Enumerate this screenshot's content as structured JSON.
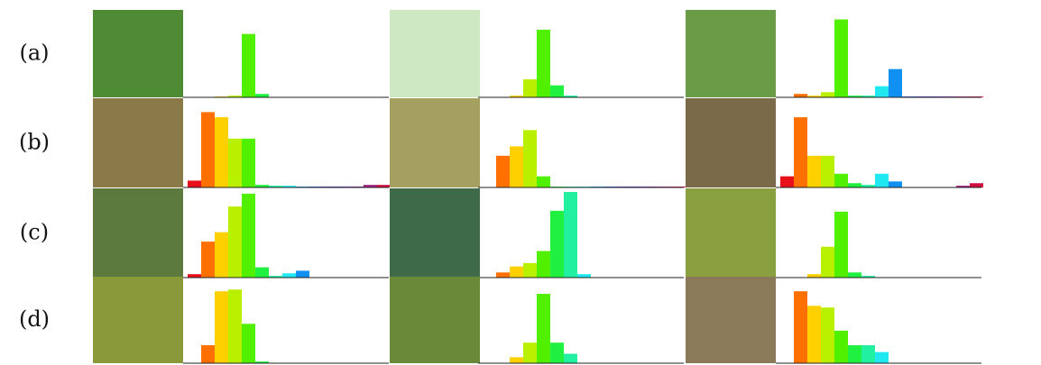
{
  "row_labels": [
    "(a)",
    "(b)",
    "(c)",
    "(d)"
  ],
  "chart_data": [
    {
      "type": "bar",
      "ylim": [
        0,
        100
      ],
      "values": [
        0,
        0,
        1,
        2,
        74,
        4,
        0,
        0,
        0,
        0,
        0,
        0,
        0,
        0,
        0
      ],
      "colors": [
        "#e8101a",
        "#ff7000",
        "#ffd000",
        "#b8f000",
        "#50f000",
        "#20f040",
        "#20f0a0",
        "#20e8f0",
        "#1090f0",
        "#2050e0",
        "#4030d0",
        "#6020c0",
        "#8020a0",
        "#a02080",
        "#d01040"
      ]
    },
    {
      "type": "bar",
      "ylim": [
        0,
        100
      ],
      "values": [
        0,
        0,
        2,
        21,
        79,
        14,
        2,
        0,
        0,
        0,
        0,
        0,
        0,
        0,
        0
      ],
      "colors": [
        "#e8101a",
        "#ff7000",
        "#ffd000",
        "#b8f000",
        "#50f000",
        "#20f040",
        "#20f0a0",
        "#20e8f0",
        "#1090f0",
        "#2050e0",
        "#4030d0",
        "#6020c0",
        "#8020a0",
        "#a02080",
        "#d01040"
      ]
    },
    {
      "type": "bar",
      "ylim": [
        0,
        100
      ],
      "values": [
        0,
        4,
        2,
        6,
        91,
        2,
        2,
        13,
        33,
        1,
        1,
        1,
        1,
        1,
        1
      ],
      "colors": [
        "#e8101a",
        "#ff7000",
        "#ffd000",
        "#b8f000",
        "#50f000",
        "#20f040",
        "#20f0a0",
        "#20e8f0",
        "#1090f0",
        "#2050e0",
        "#4030d0",
        "#6020c0",
        "#8020a0",
        "#a02080",
        "#d01040"
      ]
    },
    {
      "type": "bar",
      "ylim": [
        0,
        100
      ],
      "values": [
        8,
        88,
        82,
        57,
        57,
        3,
        2,
        2,
        1,
        1,
        1,
        1,
        1,
        3,
        3
      ],
      "colors": [
        "#e8101a",
        "#ff7000",
        "#ffd000",
        "#b8f000",
        "#50f000",
        "#20f040",
        "#20f0a0",
        "#20e8f0",
        "#1090f0",
        "#2050e0",
        "#4030d0",
        "#6020c0",
        "#8020a0",
        "#a02080",
        "#d01040"
      ]
    },
    {
      "type": "bar",
      "ylim": [
        0,
        100
      ],
      "values": [
        0,
        37,
        48,
        67,
        13,
        1,
        1,
        1,
        1,
        1,
        1,
        1,
        1,
        1,
        1
      ],
      "colors": [
        "#e8101a",
        "#ff7000",
        "#ffd000",
        "#b8f000",
        "#50f000",
        "#20f040",
        "#20f0a0",
        "#20e8f0",
        "#1090f0",
        "#2050e0",
        "#4030d0",
        "#6020c0",
        "#8020a0",
        "#a02080",
        "#d01040"
      ]
    },
    {
      "type": "bar",
      "ylim": [
        0,
        100
      ],
      "values": [
        13,
        82,
        37,
        37,
        16,
        5,
        3,
        16,
        7,
        0,
        0,
        0,
        0,
        2,
        5
      ],
      "colors": [
        "#e8101a",
        "#ff7000",
        "#ffd000",
        "#b8f000",
        "#50f000",
        "#20f040",
        "#20f0a0",
        "#20e8f0",
        "#1090f0",
        "#2050e0",
        "#4030d0",
        "#6020c0",
        "#8020a0",
        "#a02080",
        "#d01040"
      ]
    },
    {
      "type": "bar",
      "ylim": [
        0,
        100
      ],
      "values": [
        4,
        42,
        53,
        83,
        98,
        12,
        2,
        5,
        8,
        0,
        0,
        0,
        0,
        0,
        0
      ],
      "colors": [
        "#e8101a",
        "#ff7000",
        "#ffd000",
        "#b8f000",
        "#50f000",
        "#20f040",
        "#20f0a0",
        "#20e8f0",
        "#1090f0",
        "#2050e0",
        "#4030d0",
        "#6020c0",
        "#8020a0",
        "#a02080",
        "#d01040"
      ]
    },
    {
      "type": "bar",
      "ylim": [
        0,
        100
      ],
      "values": [
        0,
        6,
        13,
        17,
        31,
        78,
        100,
        4,
        0,
        0,
        0,
        0,
        0,
        0,
        0
      ],
      "colors": [
        "#e8101a",
        "#ff7000",
        "#ffd000",
        "#b8f000",
        "#50f000",
        "#20f040",
        "#20f0a0",
        "#20e8f0",
        "#1090f0",
        "#2050e0",
        "#4030d0",
        "#6020c0",
        "#8020a0",
        "#a02080",
        "#d01040"
      ]
    },
    {
      "type": "bar",
      "ylim": [
        0,
        100
      ],
      "values": [
        0,
        0,
        4,
        36,
        77,
        6,
        2,
        0,
        0,
        0,
        0,
        0,
        0,
        0,
        0
      ],
      "colors": [
        "#e8101a",
        "#ff7000",
        "#ffd000",
        "#b8f000",
        "#50f000",
        "#20f040",
        "#20f0a0",
        "#20e8f0",
        "#1090f0",
        "#2050e0",
        "#4030d0",
        "#6020c0",
        "#8020a0",
        "#a02080",
        "#d01040"
      ]
    },
    {
      "type": "bar",
      "ylim": [
        0,
        100
      ],
      "values": [
        0,
        21,
        84,
        86,
        46,
        2,
        0,
        0,
        0,
        0,
        0,
        0,
        0,
        0,
        0
      ],
      "colors": [
        "#e8101a",
        "#ff7000",
        "#ffd000",
        "#b8f000",
        "#50f000",
        "#20f040",
        "#20f0a0",
        "#20e8f0",
        "#1090f0",
        "#2050e0",
        "#4030d0",
        "#6020c0",
        "#8020a0",
        "#a02080",
        "#d01040"
      ]
    },
    {
      "type": "bar",
      "ylim": [
        0,
        100
      ],
      "values": [
        0,
        0,
        7,
        24,
        81,
        24,
        11,
        0,
        0,
        0,
        0,
        0,
        0,
        0,
        0
      ],
      "colors": [
        "#e8101a",
        "#ff7000",
        "#ffd000",
        "#b8f000",
        "#50f000",
        "#20f040",
        "#20f0a0",
        "#20e8f0",
        "#1090f0",
        "#2050e0",
        "#4030d0",
        "#6020c0",
        "#8020a0",
        "#a02080",
        "#d01040"
      ]
    },
    {
      "type": "bar",
      "ylim": [
        0,
        100
      ],
      "values": [
        0,
        84,
        67,
        65,
        38,
        21,
        21,
        13,
        0,
        0,
        0,
        0,
        0,
        0,
        0
      ],
      "colors": [
        "#e8101a",
        "#ff7000",
        "#ffd000",
        "#b8f000",
        "#50f000",
        "#20f040",
        "#20f0a0",
        "#20e8f0",
        "#1090f0",
        "#2050e0",
        "#4030d0",
        "#6020c0",
        "#8020a0",
        "#a02080",
        "#d01040"
      ]
    }
  ]
}
